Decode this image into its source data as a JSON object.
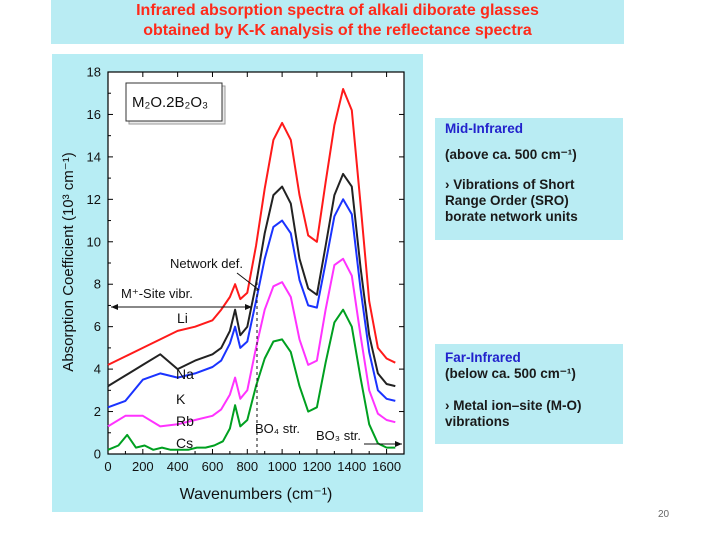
{
  "header": {
    "line1": "Infrared absorption spectra of alkali diborate glasses",
    "line2": "obtained by K-K analysis of the reflectance spectra"
  },
  "mid_infrared": {
    "heading": "Mid-Infrared",
    "range": "(above ca. 500 cm⁻¹)",
    "bullet": "Vibrations of Short",
    "line2": "Range Order (SRO)",
    "line3": "borate network units"
  },
  "far_infrared": {
    "heading": "Far-Infrared",
    "range": "(below ca. 500 cm⁻¹)",
    "bullet": "Metal ion–site (M-O)",
    "line2": "vibrations"
  },
  "page_number": "20",
  "colors": {
    "title_band": "#b9ecf3",
    "title_text": "#ff2a1a",
    "panel": "#b7edf4",
    "heading_blue": "#2222cc"
  },
  "chart_data": {
    "type": "line",
    "title": "",
    "xlabel": "Wavenumbers (cm⁻¹)",
    "ylabel": "Absorption Coefficient (10³ cm⁻¹)",
    "xlim": [
      0,
      1700
    ],
    "ylim": [
      0,
      18
    ],
    "xticks": [
      0,
      200,
      400,
      600,
      800,
      1000,
      1200,
      1400,
      1600
    ],
    "yticks": [
      0,
      2,
      4,
      6,
      8,
      10,
      12,
      14,
      16,
      18
    ],
    "formula": "M₂O.2B₂O₃",
    "series": [
      {
        "name": "Li",
        "color": "#ff1a1a",
        "x": [
          0,
          100,
          200,
          300,
          400,
          500,
          600,
          650,
          700,
          730,
          760,
          800,
          850,
          900,
          950,
          1000,
          1050,
          1100,
          1150,
          1200,
          1250,
          1300,
          1350,
          1400,
          1450,
          1500,
          1550,
          1600,
          1650
        ],
        "y": [
          4.2,
          4.6,
          5.0,
          5.4,
          5.8,
          6.0,
          6.3,
          6.8,
          7.4,
          8.0,
          7.3,
          7.6,
          9.8,
          12.5,
          14.8,
          15.6,
          14.8,
          12.2,
          10.3,
          10.0,
          12.8,
          15.5,
          17.2,
          16.2,
          11.8,
          7.2,
          5.0,
          4.5,
          4.3
        ]
      },
      {
        "name": "Na",
        "color": "#222222",
        "x": [
          0,
          100,
          200,
          300,
          400,
          500,
          600,
          650,
          700,
          730,
          760,
          800,
          850,
          900,
          950,
          1000,
          1050,
          1100,
          1150,
          1200,
          1250,
          1300,
          1350,
          1400,
          1450,
          1500,
          1550,
          1600,
          1650
        ],
        "y": [
          3.2,
          3.7,
          4.2,
          4.7,
          4.0,
          4.4,
          4.7,
          5.0,
          5.8,
          6.8,
          5.6,
          6.0,
          8.0,
          10.4,
          12.2,
          12.6,
          11.8,
          9.2,
          7.8,
          7.5,
          9.8,
          12.2,
          13.2,
          12.6,
          8.8,
          5.6,
          3.8,
          3.3,
          3.2
        ]
      },
      {
        "name": "K",
        "color": "#1a33ff",
        "x": [
          0,
          100,
          200,
          300,
          400,
          500,
          600,
          650,
          700,
          730,
          760,
          800,
          850,
          900,
          950,
          1000,
          1050,
          1100,
          1150,
          1200,
          1250,
          1300,
          1350,
          1400,
          1450,
          1500,
          1550,
          1600,
          1650
        ],
        "y": [
          2.2,
          2.5,
          3.5,
          3.8,
          3.6,
          3.8,
          4.1,
          4.4,
          5.2,
          6.0,
          5.0,
          5.3,
          7.2,
          9.2,
          10.7,
          11.0,
          10.4,
          8.2,
          7.0,
          6.9,
          9.0,
          11.2,
          12.0,
          11.3,
          7.8,
          4.8,
          3.0,
          2.6,
          2.5
        ]
      },
      {
        "name": "Rb",
        "color": "#ff33ff",
        "x": [
          0,
          100,
          200,
          300,
          400,
          500,
          600,
          650,
          700,
          730,
          760,
          800,
          850,
          900,
          950,
          1000,
          1050,
          1100,
          1150,
          1200,
          1250,
          1300,
          1350,
          1400,
          1450,
          1500,
          1550,
          1600,
          1650
        ],
        "y": [
          1.3,
          1.8,
          1.8,
          1.3,
          1.4,
          1.6,
          1.8,
          2.1,
          2.8,
          3.6,
          2.6,
          3.0,
          5.0,
          6.8,
          7.9,
          8.1,
          7.4,
          5.4,
          4.2,
          4.4,
          6.8,
          8.9,
          9.2,
          8.4,
          5.6,
          3.0,
          1.9,
          1.6,
          1.5
        ]
      },
      {
        "name": "Cs",
        "color": "#00a020",
        "x": [
          0,
          60,
          110,
          160,
          210,
          260,
          310,
          360,
          410,
          460,
          510,
          560,
          610,
          660,
          700,
          730,
          760,
          800,
          850,
          900,
          950,
          1000,
          1050,
          1100,
          1150,
          1200,
          1250,
          1300,
          1350,
          1400,
          1450,
          1500,
          1550,
          1600,
          1650
        ],
        "y": [
          0.2,
          0.4,
          0.9,
          0.3,
          0.4,
          0.2,
          0.3,
          0.2,
          0.2,
          0.2,
          0.3,
          0.3,
          0.4,
          0.6,
          1.2,
          2.3,
          1.3,
          1.6,
          3.2,
          4.5,
          5.3,
          5.4,
          4.8,
          3.2,
          2.0,
          2.2,
          4.3,
          6.2,
          6.8,
          6.0,
          3.6,
          1.4,
          0.5,
          0.3,
          0.3
        ]
      }
    ],
    "annotations": {
      "network_def": "Network def.",
      "site_vibr": "M⁺-Site vibr.",
      "bo4_str": "BO₄ str.",
      "bo3_str": "BO₃ str."
    }
  }
}
